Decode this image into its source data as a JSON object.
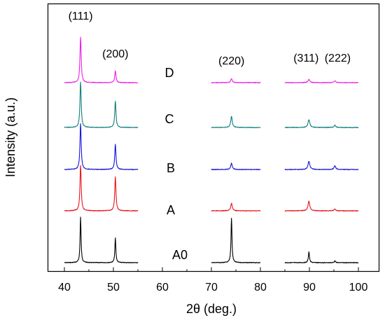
{
  "chart_data": {
    "type": "line",
    "title": "",
    "xlabel": "2θ (deg.)",
    "ylabel": "Intensity (a.u.)",
    "xlim": [
      35,
      102
    ],
    "x_ticks": [
      40,
      50,
      60,
      70,
      80,
      90,
      100
    ],
    "x_tick_labels": [
      "40",
      "50",
      "60",
      "70",
      "80",
      "90",
      "100"
    ],
    "y_ticks": "none",
    "grid": false,
    "legend": "none",
    "segments": [
      [
        40,
        55
      ],
      [
        70,
        80
      ],
      [
        85,
        100
      ]
    ],
    "peak_annotations": [
      {
        "label": "(111)",
        "x": 43.3
      },
      {
        "label": "(200)",
        "x": 50.4
      },
      {
        "label": "(220)",
        "x": 74.1
      },
      {
        "label": "(311)",
        "x": 89.9
      },
      {
        "label": "(222)",
        "x": 95.2
      }
    ],
    "series": [
      {
        "name": "A0",
        "color": "#000000",
        "order": 0,
        "peaks": [
          {
            "x": 43.3,
            "h": 1.0,
            "w": 0.12
          },
          {
            "x": 50.4,
            "h": 0.54,
            "w": 0.12
          },
          {
            "x": 74.1,
            "h": 0.98,
            "w": 0.12
          },
          {
            "x": 89.9,
            "h": 0.24,
            "w": 0.13
          },
          {
            "x": 95.2,
            "h": 0.04,
            "w": 0.13
          }
        ]
      },
      {
        "name": "A",
        "color": "#e8141c",
        "order": 1,
        "peaks": [
          {
            "x": 43.3,
            "h": 1.0,
            "w": 0.15
          },
          {
            "x": 50.4,
            "h": 0.74,
            "w": 0.15
          },
          {
            "x": 74.1,
            "h": 0.17,
            "w": 0.18
          },
          {
            "x": 89.9,
            "h": 0.21,
            "w": 0.22
          },
          {
            "x": 95.2,
            "h": 0.04,
            "w": 0.2
          }
        ]
      },
      {
        "name": "B",
        "color": "#1414d8",
        "order": 2,
        "peaks": [
          {
            "x": 43.3,
            "h": 1.0,
            "w": 0.15
          },
          {
            "x": 50.4,
            "h": 0.55,
            "w": 0.15
          },
          {
            "x": 74.1,
            "h": 0.14,
            "w": 0.18
          },
          {
            "x": 89.9,
            "h": 0.18,
            "w": 0.22
          },
          {
            "x": 95.2,
            "h": 0.08,
            "w": 0.2
          }
        ]
      },
      {
        "name": "C",
        "color": "#137e7e",
        "order": 3,
        "peaks": [
          {
            "x": 43.3,
            "h": 1.0,
            "w": 0.15
          },
          {
            "x": 50.4,
            "h": 0.58,
            "w": 0.15
          },
          {
            "x": 74.1,
            "h": 0.25,
            "w": 0.18
          },
          {
            "x": 89.9,
            "h": 0.17,
            "w": 0.22
          },
          {
            "x": 95.2,
            "h": 0.05,
            "w": 0.2
          }
        ]
      },
      {
        "name": "D",
        "color": "#e91fe6",
        "order": 4,
        "peaks": [
          {
            "x": 43.3,
            "h": 1.0,
            "w": 0.15
          },
          {
            "x": 50.4,
            "h": 0.26,
            "w": 0.15
          },
          {
            "x": 74.1,
            "h": 0.09,
            "w": 0.18
          },
          {
            "x": 89.9,
            "h": 0.07,
            "w": 0.22
          },
          {
            "x": 95.2,
            "h": 0.04,
            "w": 0.2
          }
        ]
      }
    ]
  }
}
